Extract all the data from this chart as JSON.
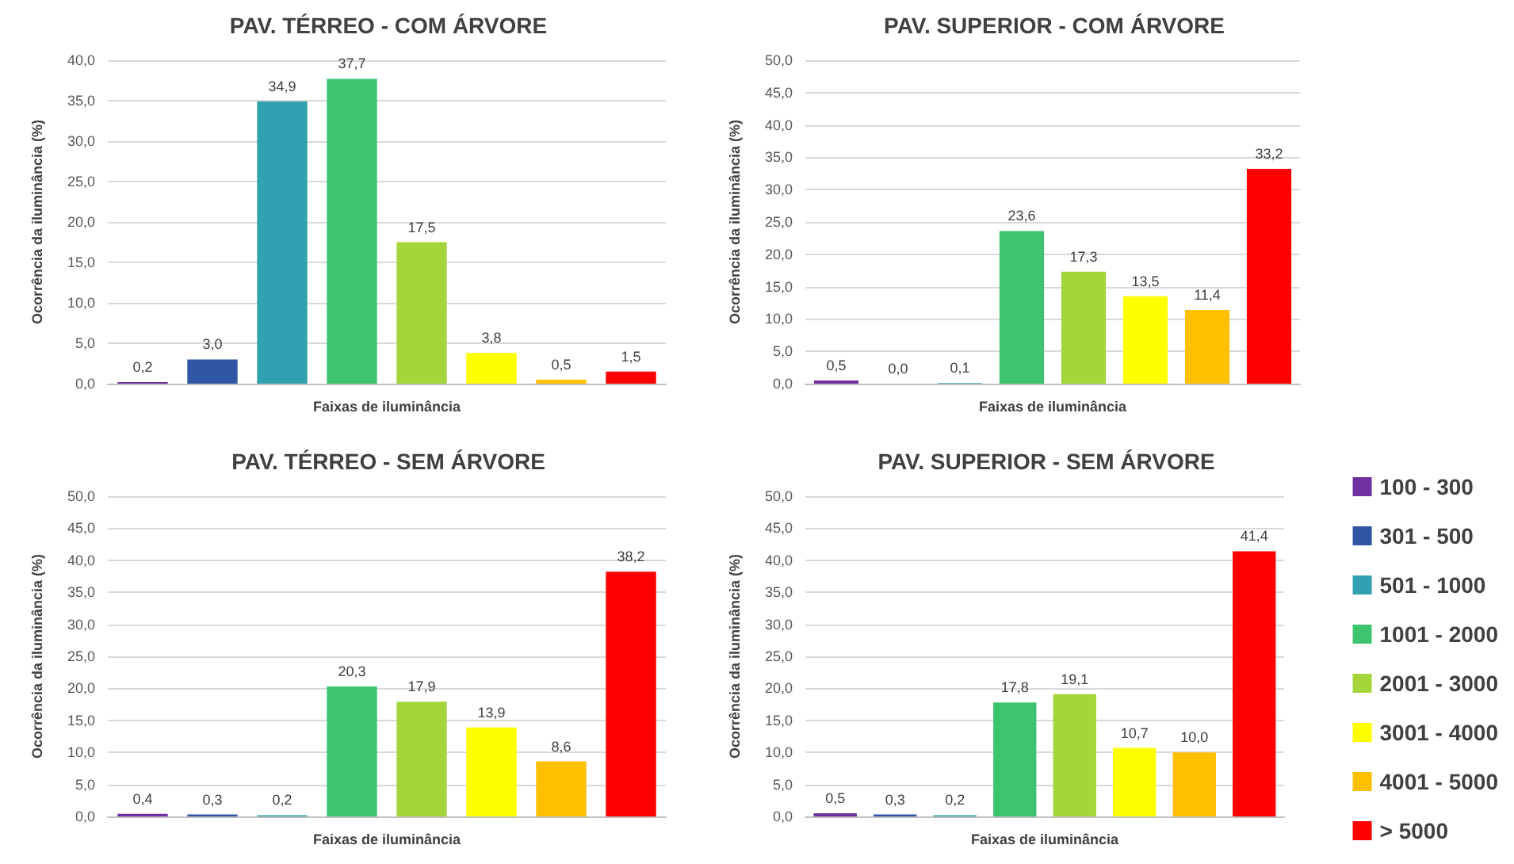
{
  "chart_data": [
    {
      "type": "bar",
      "stacked": true,
      "title": "PAV. TÉRREO - COM ÁRVORE",
      "xlabel": "Faixas de iluminância",
      "ylabel": "Ocorrência da iluminância (%)",
      "categories": [
        null,
        null,
        null,
        null,
        null,
        null,
        null,
        null
      ],
      "series": [
        {
          "color": "#7030a0",
          "values": [
            0.2,
            null,
            null,
            null,
            null,
            null,
            null,
            null
          ],
          "value_labels": [
            "0,2",
            null,
            null,
            null,
            null,
            null,
            null,
            null
          ]
        },
        {
          "color": "#2f55a4",
          "values": [
            null,
            3.0,
            null,
            null,
            null,
            null,
            null,
            null
          ],
          "value_labels": [
            null,
            "3,0",
            null,
            null,
            null,
            null,
            null,
            null
          ]
        },
        {
          "color": "#31a0b0",
          "values": [
            null,
            null,
            34.9,
            null,
            null,
            null,
            null,
            null
          ],
          "value_labels": [
            null,
            null,
            "34,9",
            null,
            null,
            null,
            null,
            null
          ]
        },
        {
          "color": "#3cc46e",
          "values": [
            null,
            null,
            null,
            37.7,
            null,
            null,
            null,
            null
          ],
          "value_labels": [
            null,
            null,
            null,
            "37,7",
            null,
            null,
            null,
            null
          ]
        },
        {
          "color": "#a4d53a",
          "values": [
            null,
            null,
            null,
            null,
            17.5,
            null,
            null,
            null
          ],
          "value_labels": [
            null,
            null,
            null,
            null,
            "17,5",
            null,
            null,
            null
          ]
        },
        {
          "color": "#ffff00",
          "values": [
            null,
            null,
            null,
            null,
            null,
            3.8,
            null,
            null
          ],
          "value_labels": [
            null,
            null,
            null,
            null,
            null,
            "3,8",
            null,
            null
          ]
        },
        {
          "color": "#ffc000",
          "values": [
            null,
            null,
            null,
            null,
            null,
            null,
            0.5,
            null
          ],
          "value_labels": [
            null,
            null,
            null,
            null,
            null,
            null,
            "0,5",
            null
          ]
        },
        {
          "color": "#ff0000",
          "values": [
            null,
            null,
            null,
            null,
            null,
            null,
            null,
            1.5
          ],
          "value_labels": [
            null,
            null,
            null,
            null,
            null,
            null,
            null,
            "1,5"
          ]
        }
      ],
      "ylim": [
        0,
        40
      ],
      "yticks": [
        {
          "value": 0,
          "label": "0,0"
        },
        {
          "value": 5,
          "label": "5,0"
        },
        {
          "value": 10,
          "label": "10,0"
        },
        {
          "value": 15,
          "label": "15,0"
        },
        {
          "value": 20,
          "label": "20,0"
        },
        {
          "value": 25,
          "label": "25,0"
        },
        {
          "value": 30,
          "label": "30,0"
        },
        {
          "value": 35,
          "label": "35,0"
        },
        {
          "value": 40,
          "label": "40,0"
        }
      ],
      "grid": "y",
      "tick_labels": "y"
    },
    {
      "type": "bar",
      "stacked": true,
      "title": "PAV. SUPERIOR - COM ÁRVORE",
      "xlabel": "Faixas de iluminância",
      "ylabel": "Ocorrência da iluminância (%)",
      "categories": [
        null,
        null,
        null,
        null,
        null,
        null,
        null,
        null
      ],
      "series": [
        {
          "color": "#7030a0",
          "values": [
            0.5,
            null,
            null,
            null,
            null,
            null,
            null,
            null
          ],
          "value_labels": [
            "0,5",
            null,
            null,
            null,
            null,
            null,
            null,
            null
          ]
        },
        {
          "color": "#2f55a4",
          "values": [
            null,
            0.0,
            null,
            null,
            null,
            null,
            null,
            null
          ],
          "value_labels": [
            null,
            "0,0",
            null,
            null,
            null,
            null,
            null,
            null
          ]
        },
        {
          "color": "#31a0b0",
          "values": [
            null,
            null,
            0.1,
            null,
            null,
            null,
            null,
            null
          ],
          "value_labels": [
            null,
            null,
            "0,1",
            null,
            null,
            null,
            null,
            null
          ]
        },
        {
          "color": "#3cc46e",
          "values": [
            null,
            null,
            null,
            23.6,
            null,
            null,
            null,
            null
          ],
          "value_labels": [
            null,
            null,
            null,
            "23,6",
            null,
            null,
            null,
            null
          ]
        },
        {
          "color": "#a4d53a",
          "values": [
            null,
            null,
            null,
            null,
            17.3,
            null,
            null,
            null
          ],
          "value_labels": [
            null,
            null,
            null,
            null,
            "17,3",
            null,
            null,
            null
          ]
        },
        {
          "color": "#ffff00",
          "values": [
            null,
            null,
            null,
            null,
            null,
            13.5,
            null,
            null
          ],
          "value_labels": [
            null,
            null,
            null,
            null,
            null,
            "13,5",
            null,
            null
          ]
        },
        {
          "color": "#ffc000",
          "values": [
            null,
            null,
            null,
            null,
            null,
            null,
            11.4,
            null
          ],
          "value_labels": [
            null,
            null,
            null,
            null,
            null,
            null,
            "11,4",
            null
          ]
        },
        {
          "color": "#ff0000",
          "values": [
            null,
            null,
            null,
            null,
            null,
            null,
            null,
            33.2
          ],
          "value_labels": [
            null,
            null,
            null,
            null,
            null,
            null,
            null,
            "33,2"
          ]
        }
      ],
      "ylim": [
        0,
        50
      ],
      "yticks": [
        {
          "value": 0,
          "label": "0,0"
        },
        {
          "value": 5,
          "label": "5,0"
        },
        {
          "value": 10,
          "label": "10,0"
        },
        {
          "value": 15,
          "label": "15,0"
        },
        {
          "value": 20,
          "label": "20,0"
        },
        {
          "value": 25,
          "label": "25,0"
        },
        {
          "value": 30,
          "label": "30,0"
        },
        {
          "value": 35,
          "label": "35,0"
        },
        {
          "value": 40,
          "label": "40,0"
        },
        {
          "value": 45,
          "label": "45,0"
        },
        {
          "value": 50,
          "label": "50,0"
        }
      ],
      "grid": "y",
      "tick_labels": "y"
    },
    {
      "type": "bar",
      "stacked": true,
      "title": "PAV. TÉRREO - SEM ÁRVORE",
      "xlabel": "Faixas de iluminância",
      "ylabel": "Ocorrência da iluminância (%)",
      "categories": [
        null,
        null,
        null,
        null,
        null,
        null,
        null,
        null
      ],
      "series": [
        {
          "color": "#7030a0",
          "values": [
            0.4,
            null,
            null,
            null,
            null,
            null,
            null,
            null
          ],
          "value_labels": [
            "0,4",
            null,
            null,
            null,
            null,
            null,
            null,
            null
          ]
        },
        {
          "color": "#2f55a4",
          "values": [
            null,
            0.3,
            null,
            null,
            null,
            null,
            null,
            null
          ],
          "value_labels": [
            null,
            "0,3",
            null,
            null,
            null,
            null,
            null,
            null
          ]
        },
        {
          "color": "#31a0b0",
          "values": [
            null,
            null,
            0.2,
            null,
            null,
            null,
            null,
            null
          ],
          "value_labels": [
            null,
            null,
            "0,2",
            null,
            null,
            null,
            null,
            null
          ]
        },
        {
          "color": "#3cc46e",
          "values": [
            null,
            null,
            null,
            20.3,
            null,
            null,
            null,
            null
          ],
          "value_labels": [
            null,
            null,
            null,
            "20,3",
            null,
            null,
            null,
            null
          ]
        },
        {
          "color": "#a4d53a",
          "values": [
            null,
            null,
            null,
            null,
            17.9,
            null,
            null,
            null
          ],
          "value_labels": [
            null,
            null,
            null,
            null,
            "17,9",
            null,
            null,
            null
          ]
        },
        {
          "color": "#ffff00",
          "values": [
            null,
            null,
            null,
            null,
            null,
            13.9,
            null,
            null
          ],
          "value_labels": [
            null,
            null,
            null,
            null,
            null,
            "13,9",
            null,
            null
          ]
        },
        {
          "color": "#ffc000",
          "values": [
            null,
            null,
            null,
            null,
            null,
            null,
            8.6,
            null
          ],
          "value_labels": [
            null,
            null,
            null,
            null,
            null,
            null,
            "8,6",
            null
          ]
        },
        {
          "color": "#ff0000",
          "values": [
            null,
            null,
            null,
            null,
            null,
            null,
            null,
            38.2
          ],
          "value_labels": [
            null,
            null,
            null,
            null,
            null,
            null,
            null,
            "38,2"
          ]
        }
      ],
      "ylim": [
        0,
        50
      ],
      "yticks": [
        {
          "value": 0,
          "label": "0,0"
        },
        {
          "value": 5,
          "label": "5,0"
        },
        {
          "value": 10,
          "label": "10,0"
        },
        {
          "value": 15,
          "label": "15,0"
        },
        {
          "value": 20,
          "label": "20,0"
        },
        {
          "value": 25,
          "label": "25,0"
        },
        {
          "value": 30,
          "label": "30,0"
        },
        {
          "value": 35,
          "label": "35,0"
        },
        {
          "value": 40,
          "label": "40,0"
        },
        {
          "value": 45,
          "label": "45,0"
        },
        {
          "value": 50,
          "label": "50,0"
        }
      ],
      "grid": "y",
      "tick_labels": "y"
    },
    {
      "type": "bar",
      "stacked": true,
      "title": "PAV. SUPERIOR - SEM ÁRVORE",
      "xlabel": "Faixas de iluminância",
      "ylabel": "Ocorrência da iluminância (%)",
      "categories": [
        null,
        null,
        null,
        null,
        null,
        null,
        null,
        null
      ],
      "series": [
        {
          "name": "100 - 300",
          "color": "#7030a0",
          "values": [
            0.5,
            null,
            null,
            null,
            null,
            null,
            null,
            null
          ],
          "value_labels": [
            "0,5",
            null,
            null,
            null,
            null,
            null,
            null,
            null
          ]
        },
        {
          "name": "301 - 500",
          "color": "#2f55a4",
          "values": [
            null,
            0.3,
            null,
            null,
            null,
            null,
            null,
            null
          ],
          "value_labels": [
            null,
            "0,3",
            null,
            null,
            null,
            null,
            null,
            null
          ]
        },
        {
          "name": "501 - 1000",
          "color": "#31a0b0",
          "values": [
            null,
            null,
            0.2,
            null,
            null,
            null,
            null,
            null
          ],
          "value_labels": [
            null,
            null,
            "0,2",
            null,
            null,
            null,
            null,
            null
          ]
        },
        {
          "name": "1001 - 2000",
          "color": "#3cc46e",
          "values": [
            null,
            null,
            null,
            17.8,
            null,
            null,
            null,
            null
          ],
          "value_labels": [
            null,
            null,
            null,
            "17,8",
            null,
            null,
            null,
            null
          ]
        },
        {
          "name": "2001 - 3000",
          "color": "#a4d53a",
          "values": [
            null,
            null,
            null,
            null,
            19.1,
            null,
            null,
            null
          ],
          "value_labels": [
            null,
            null,
            null,
            null,
            "19,1",
            null,
            null,
            null
          ]
        },
        {
          "name": "3001 - 4000",
          "color": "#ffff00",
          "values": [
            null,
            null,
            null,
            null,
            null,
            10.7,
            null,
            null
          ],
          "value_labels": [
            null,
            null,
            null,
            null,
            null,
            "10,7",
            null,
            null
          ]
        },
        {
          "name": "4001 - 5000",
          "color": "#ffc000",
          "values": [
            null,
            null,
            null,
            null,
            null,
            null,
            10.0,
            null
          ],
          "value_labels": [
            null,
            null,
            null,
            null,
            null,
            null,
            "10,0",
            null
          ]
        },
        {
          "name": "> 5000",
          "color": "#ff0000",
          "values": [
            null,
            null,
            null,
            null,
            null,
            null,
            null,
            41.4
          ],
          "value_labels": [
            null,
            null,
            null,
            null,
            null,
            null,
            null,
            "41,4"
          ]
        }
      ],
      "ylim": [
        0,
        50
      ],
      "yticks": [
        {
          "value": 0,
          "label": "0,0"
        },
        {
          "value": 5,
          "label": "5,0"
        },
        {
          "value": 10,
          "label": "10,0"
        },
        {
          "value": 15,
          "label": "15,0"
        },
        {
          "value": 20,
          "label": "20,0"
        },
        {
          "value": 25,
          "label": "25,0"
        },
        {
          "value": 30,
          "label": "30,0"
        },
        {
          "value": 35,
          "label": "35,0"
        },
        {
          "value": 40,
          "label": "40,0"
        },
        {
          "value": 45,
          "label": "45,0"
        },
        {
          "value": 50,
          "label": "50,0"
        }
      ],
      "grid": "y",
      "tick_labels": "y",
      "legend": "right"
    }
  ]
}
